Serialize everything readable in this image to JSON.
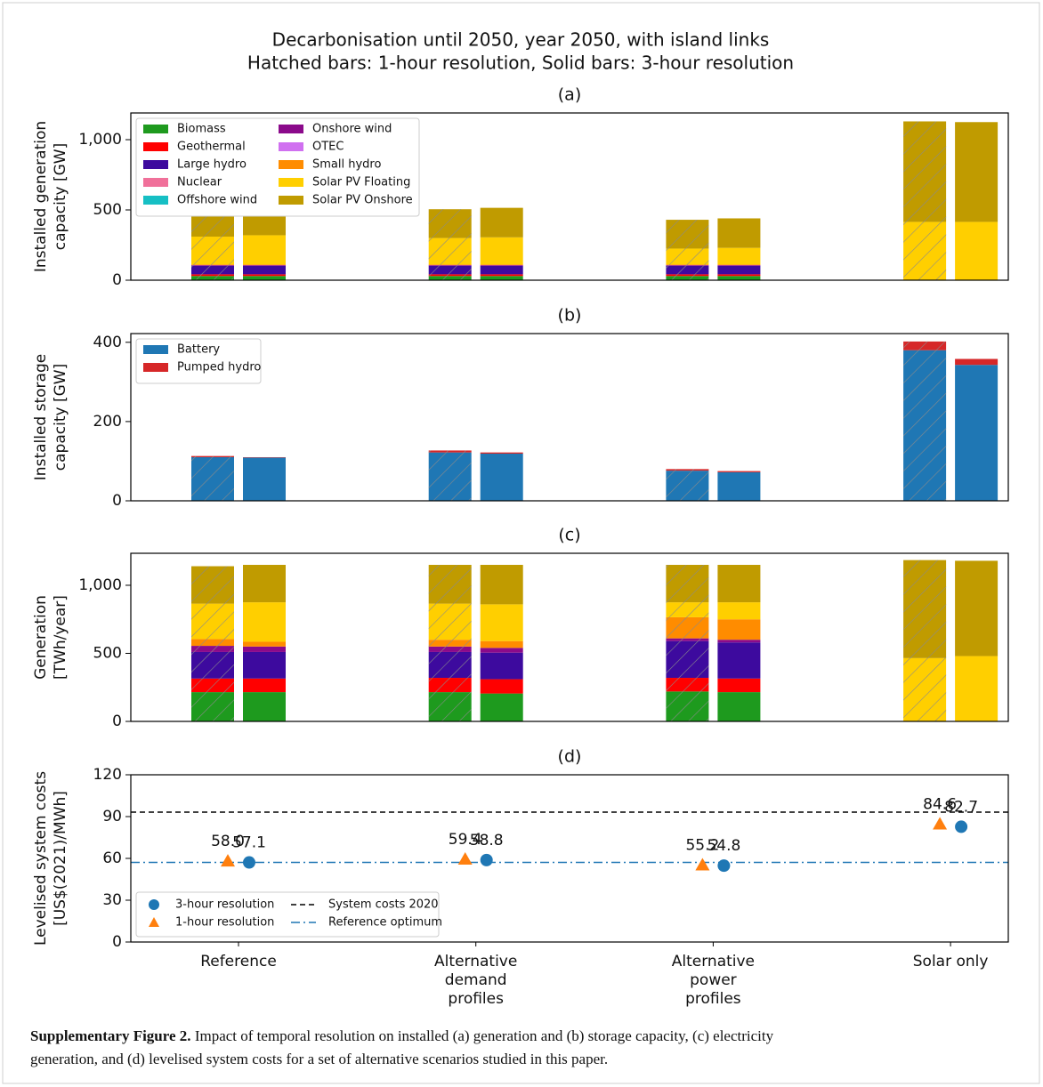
{
  "figure_title": [
    "Decarbonisation until 2050, year 2050, with island links",
    "Hatched bars: 1-hour resolution, Solid bars: 3-hour resolution"
  ],
  "chart_data": [
    {
      "type": "bar",
      "title": "(a)",
      "ylabel": [
        "Installed generation",
        "capacity [GW]"
      ],
      "ylim": [
        0,
        1190
      ],
      "yticks": [
        0,
        500,
        {
          "value": 1000,
          "label": "1,000"
        }
      ],
      "legend": "upper left",
      "series": [
        {
          "name": "Biomass",
          "color": "#1e9a1e",
          "values": [
            30,
            30,
            30,
            30,
            30,
            30,
            0,
            0
          ]
        },
        {
          "name": "Geothermal",
          "color": "#ff0000",
          "values": [
            12,
            12,
            12,
            12,
            12,
            12,
            0,
            0
          ]
        },
        {
          "name": "Large hydro",
          "color": "#3d0a9e",
          "values": [
            60,
            60,
            60,
            60,
            60,
            60,
            0,
            0
          ]
        },
        {
          "name": "Nuclear",
          "color": "#f0709a",
          "values": [
            0,
            0,
            0,
            0,
            0,
            0,
            0,
            0
          ]
        },
        {
          "name": "Offshore wind",
          "color": "#16bfc4",
          "values": [
            0,
            0,
            0,
            0,
            0,
            0,
            0,
            0
          ]
        },
        {
          "name": "Onshore wind",
          "color": "#8b0a8b",
          "values": [
            5,
            5,
            5,
            5,
            5,
            5,
            0,
            0
          ]
        },
        {
          "name": "OTEC",
          "color": "#d070f0",
          "values": [
            0,
            0,
            0,
            0,
            0,
            0,
            0,
            0
          ]
        },
        {
          "name": "Small hydro",
          "color": "#ff8c00",
          "values": [
            5,
            5,
            5,
            5,
            5,
            5,
            0,
            0
          ]
        },
        {
          "name": "Solar PV Floating",
          "color": "#ffcf00",
          "values": [
            198,
            208,
            188,
            193,
            113,
            118,
            415,
            415
          ]
        },
        {
          "name": "Solar PV Onshore",
          "color": "#c09b00",
          "values": [
            200,
            210,
            205,
            210,
            205,
            210,
            715,
            710
          ]
        }
      ]
    },
    {
      "type": "bar",
      "title": "(b)",
      "ylabel": [
        "Installed storage",
        "capacity [GW]"
      ],
      "ylim": [
        0,
        422
      ],
      "yticks": [
        0,
        200,
        400
      ],
      "legend": "upper left",
      "series": [
        {
          "name": "Battery",
          "color": "#1f77b4",
          "values": [
            110,
            109,
            122,
            119,
            76,
            72,
            380,
            343
          ]
        },
        {
          "name": "Pumped hydro",
          "color": "#d62728",
          "values": [
            3,
            1,
            5,
            3,
            4,
            3,
            22,
            15
          ]
        }
      ]
    },
    {
      "type": "bar",
      "title": "(c)",
      "ylabel": [
        "Generation",
        "[TWh/year]"
      ],
      "ylim": [
        0,
        1235
      ],
      "yticks": [
        0,
        500,
        {
          "value": 1000,
          "label": "1,000"
        }
      ],
      "series": [
        {
          "color": "#1e9a1e",
          "values": [
            215,
            215,
            215,
            205,
            220,
            215,
            0,
            0
          ]
        },
        {
          "color": "#ff0000",
          "values": [
            100,
            100,
            105,
            105,
            100,
            100,
            0,
            0
          ]
        },
        {
          "color": "#3d0a9e",
          "values": [
            195,
            195,
            190,
            195,
            270,
            265,
            0,
            0
          ]
        },
        {
          "color": "#8b0a8b",
          "values": [
            45,
            40,
            40,
            35,
            20,
            20,
            0,
            0
          ]
        },
        {
          "color": "#ff8c00",
          "values": [
            50,
            35,
            50,
            50,
            155,
            150,
            0,
            0
          ]
        },
        {
          "color": "#ffcf00",
          "values": [
            260,
            290,
            265,
            270,
            110,
            125,
            465,
            480
          ]
        },
        {
          "color": "#c09b00",
          "values": [
            275,
            275,
            285,
            290,
            275,
            275,
            720,
            700
          ]
        }
      ]
    },
    {
      "type": "scatter",
      "title": "(d)",
      "ylabel": [
        "Levelised system costs",
        "[US$(2021)/MWh]"
      ],
      "ylim": [
        0,
        120
      ],
      "yticks": [
        0,
        30,
        60,
        90,
        120
      ],
      "legend": "lower left",
      "categories": [
        [
          "Reference"
        ],
        [
          "Alternative",
          "demand",
          "profiles"
        ],
        [
          "Alternative",
          "power",
          "profiles"
        ],
        [
          "Solar only"
        ]
      ],
      "series": [
        {
          "name": "3-hour resolution",
          "color": "#1f77b4",
          "marker": "circle",
          "values": [
            57.1,
            58.8,
            54.8,
            82.7
          ],
          "value_labels": [
            "57.1",
            "58.8",
            "54.8",
            "82.7"
          ]
        },
        {
          "name": "1-hour resolution",
          "color": "#ff7f0e",
          "marker": "triangle",
          "values": [
            58.0,
            59.4,
            55.2,
            84.6
          ],
          "value_labels": [
            "58.0",
            "59.4",
            "55.2",
            "84.6"
          ]
        }
      ],
      "lines": [
        {
          "name": "System costs 2020",
          "value": 93.2,
          "color": "#000000",
          "style": "dashed"
        },
        {
          "name": "Reference optimum",
          "value": 57.1,
          "color": "#1f77b4",
          "style": "dashdot"
        }
      ]
    }
  ],
  "caption": {
    "label": "Supplementary Figure 2.",
    "lines": [
      "Impact of temporal resolution on installed (a) generation and (b) storage capacity, (c) electricity",
      "generation, and (d) levelised system costs for a set of alternative scenarios studied in this paper."
    ]
  }
}
